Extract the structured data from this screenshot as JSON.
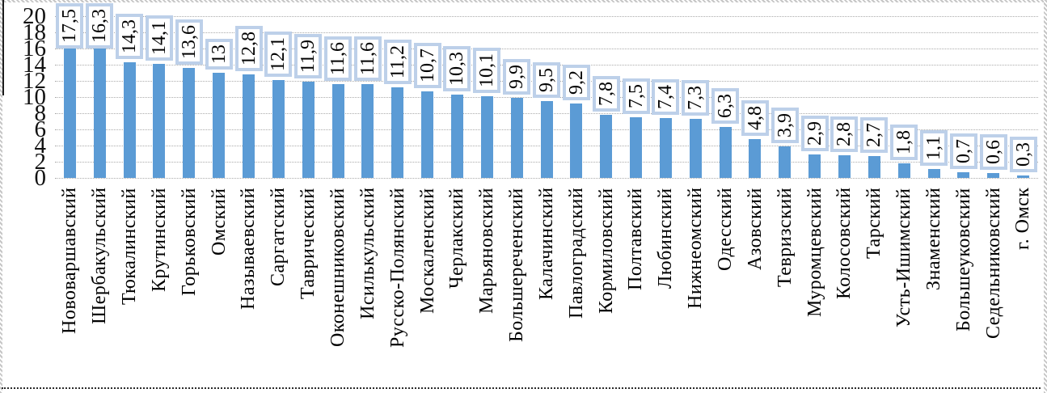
{
  "chart_data": {
    "type": "bar",
    "title": "",
    "xlabel": "",
    "ylabel": "",
    "ylim": [
      0,
      20
    ],
    "yticks": [
      "0",
      "2",
      "4",
      "6",
      "8",
      "10",
      "12",
      "14",
      "16",
      "18",
      "20"
    ],
    "grid": "horizontal dotted gray lines every 2 units",
    "legend_position": "none",
    "bar_color": "#5b9bd5",
    "label_box_border_color": "#bdd0e9",
    "label_box_fill": "#ffffff",
    "axis_text_color": "#000000",
    "categories": [
      "Нововаршавский",
      "Шербакульский",
      "Тюкалинский",
      "Крутинский",
      "Горьковский",
      "Омский",
      "Называевский",
      "Саргатский",
      "Таврический",
      "Оконешниковский",
      "Исилькульский",
      "Русско-Полянский",
      "Москаленский",
      "Черлакский",
      "Марьяновский",
      "Большереченский",
      "Калачинский",
      "Павлоградский",
      "Кормиловский",
      "Полтавский",
      "Любинский",
      "Нижнеомский",
      "Одесский",
      "Азовский",
      "Тевризский",
      "Муромцевский",
      "Колосовский",
      "Тарский",
      "Усть-Ишимский",
      "Знаменский",
      "Большеуковский",
      "Седельниковский",
      "г. Омск"
    ],
    "values": [
      17.5,
      16.3,
      14.3,
      14.1,
      13.6,
      13,
      12.8,
      12.1,
      11.9,
      11.6,
      11.6,
      11.2,
      10.7,
      10.3,
      10.1,
      9.9,
      9.5,
      9.2,
      7.8,
      7.5,
      7.4,
      7.3,
      6.3,
      4.8,
      3.9,
      2.9,
      2.8,
      2.7,
      1.8,
      1.1,
      0.7,
      0.6,
      0.3
    ],
    "value_labels": [
      "17,5",
      "16,3",
      "14,3",
      "14,1",
      "13,6",
      "13",
      "12,8",
      "12,1",
      "11,9",
      "11,6",
      "11,6",
      "11,2",
      "10,7",
      "10,3",
      "10,1",
      "9,9",
      "9,5",
      "9,2",
      "7,8",
      "7,5",
      "7,4",
      "7,3",
      "6,3",
      "4,8",
      "3,9",
      "2,9",
      "2,8",
      "2,7",
      "1,8",
      "1,1",
      "0,7",
      "0,6",
      "0,3"
    ]
  }
}
